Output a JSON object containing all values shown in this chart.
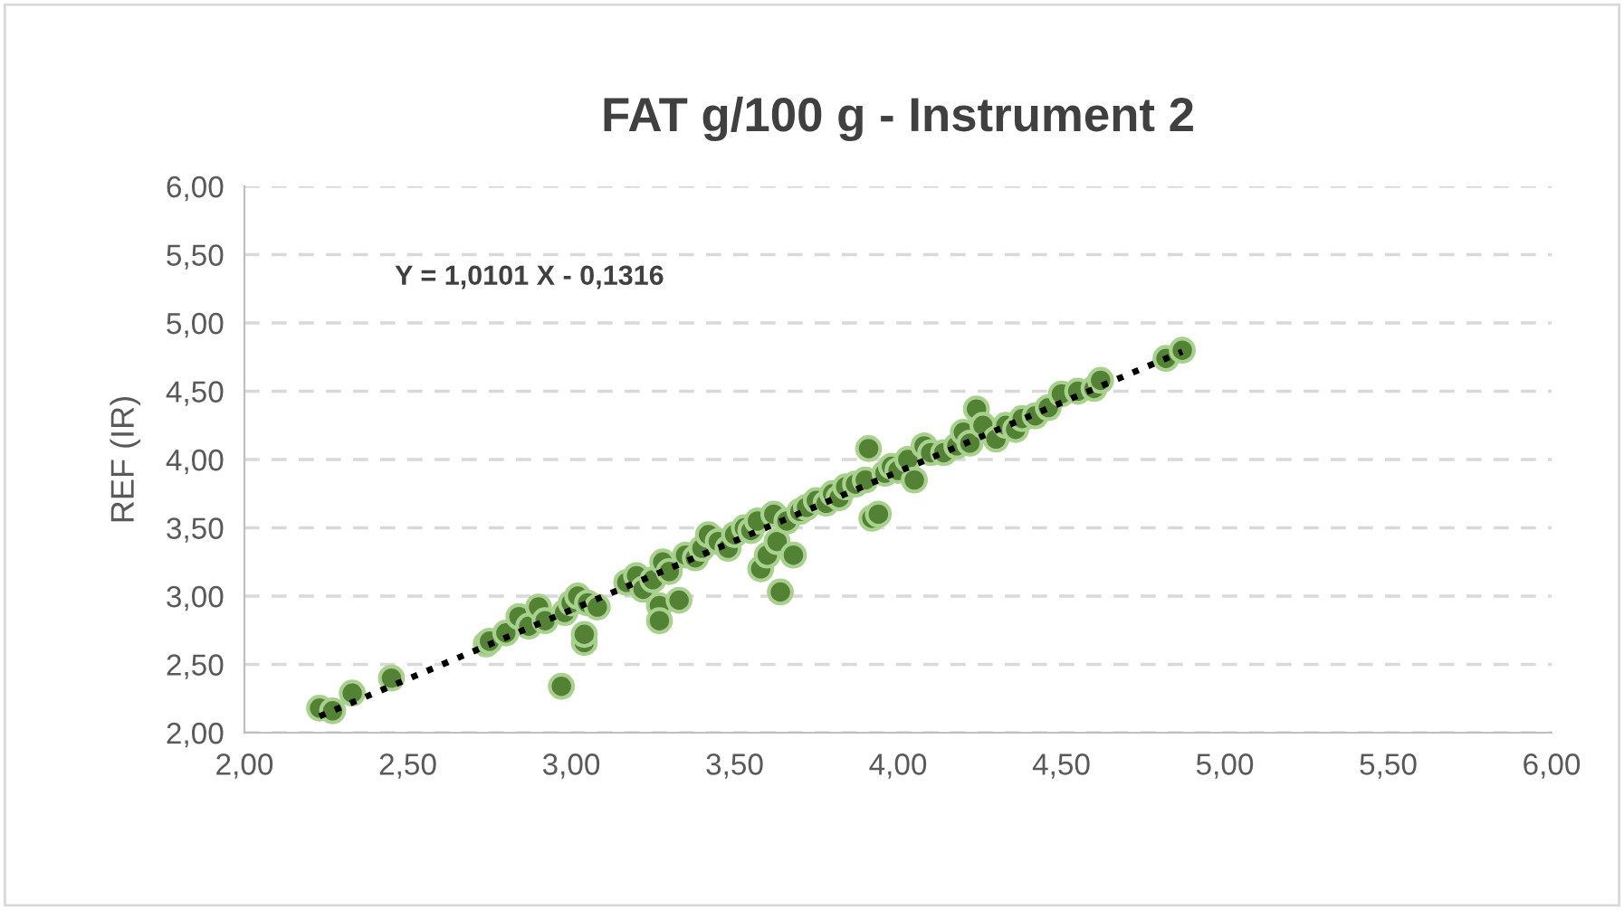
{
  "chart_data": {
    "type": "scatter",
    "title": "FAT g/100 g - Instrument 2",
    "ylabel": "REF (IR)",
    "annotations": [
      "Y = 1,0101 X - 0,1316"
    ],
    "xlim": [
      2,
      6
    ],
    "ylim": [
      2,
      6
    ],
    "xticks": [
      {
        "value": 2,
        "label": "2,00"
      },
      {
        "value": 2.5,
        "label": "2,50"
      },
      {
        "value": 3,
        "label": "3,00"
      },
      {
        "value": 3.5,
        "label": "3,50"
      },
      {
        "value": 4,
        "label": "4,00"
      },
      {
        "value": 4.5,
        "label": "4,50"
      },
      {
        "value": 5,
        "label": "5,00"
      },
      {
        "value": 5.5,
        "label": "5,50"
      },
      {
        "value": 6,
        "label": "6,00"
      }
    ],
    "yticks": [
      {
        "value": 2,
        "label": "2,00"
      },
      {
        "value": 2.5,
        "label": "2,50"
      },
      {
        "value": 3,
        "label": "3,00"
      },
      {
        "value": 3.5,
        "label": "3,50"
      },
      {
        "value": 4,
        "label": "4,00"
      },
      {
        "value": 4.5,
        "label": "4,50"
      },
      {
        "value": 5,
        "label": "5,00"
      },
      {
        "value": 5.5,
        "label": "5,50"
      },
      {
        "value": 6,
        "label": "6,00"
      }
    ],
    "grid": "y",
    "marker": "circle",
    "series": [
      {
        "color": "#548235",
        "x": [
          2.23,
          2.27,
          2.33,
          2.45,
          2.74,
          2.75,
          2.8,
          2.84,
          2.87,
          2.9,
          2.92,
          2.97,
          2.98,
          3.0,
          3.02,
          3.04,
          3.04,
          3.05,
          3.08,
          3.17,
          3.2,
          3.22,
          3.25,
          3.27,
          3.27,
          3.28,
          3.3,
          3.33,
          3.35,
          3.38,
          3.4,
          3.42,
          3.45,
          3.48,
          3.5,
          3.53,
          3.55,
          3.57,
          3.58,
          3.6,
          3.62,
          3.63,
          3.64,
          3.66,
          3.68,
          3.7,
          3.72,
          3.75,
          3.78,
          3.8,
          3.82,
          3.84,
          3.87,
          3.9,
          3.91,
          3.92,
          3.94,
          3.96,
          3.98,
          4.0,
          4.03,
          4.05,
          4.08,
          4.1,
          4.14,
          4.18,
          4.2,
          4.22,
          4.24,
          4.26,
          4.3,
          4.33,
          4.36,
          4.38,
          4.42,
          4.46,
          4.5,
          4.55,
          4.6,
          4.62,
          4.82,
          4.87
        ],
        "values": [
          2.18,
          2.16,
          2.29,
          2.4,
          2.65,
          2.67,
          2.73,
          2.85,
          2.78,
          2.92,
          2.82,
          2.34,
          2.88,
          2.95,
          3.0,
          2.66,
          2.72,
          2.95,
          2.92,
          3.1,
          3.15,
          3.05,
          3.12,
          2.93,
          2.82,
          3.25,
          3.18,
          2.97,
          3.3,
          3.28,
          3.35,
          3.45,
          3.4,
          3.35,
          3.45,
          3.5,
          3.48,
          3.55,
          3.2,
          3.3,
          3.6,
          3.4,
          3.03,
          3.55,
          3.3,
          3.62,
          3.65,
          3.7,
          3.68,
          3.75,
          3.72,
          3.8,
          3.82,
          3.85,
          4.08,
          3.57,
          3.6,
          3.9,
          3.95,
          3.92,
          4.0,
          3.85,
          4.1,
          4.05,
          4.05,
          4.1,
          4.2,
          4.12,
          4.37,
          4.25,
          4.15,
          4.25,
          4.22,
          4.3,
          4.32,
          4.38,
          4.48,
          4.5,
          4.52,
          4.58,
          4.74,
          4.8
        ]
      },
      {
        "type": "line",
        "color": "#000000",
        "line_style": "dotted",
        "marker": "none",
        "x": [
          2.23,
          4.87
        ],
        "values": [
          2.12,
          4.79
        ]
      }
    ]
  }
}
